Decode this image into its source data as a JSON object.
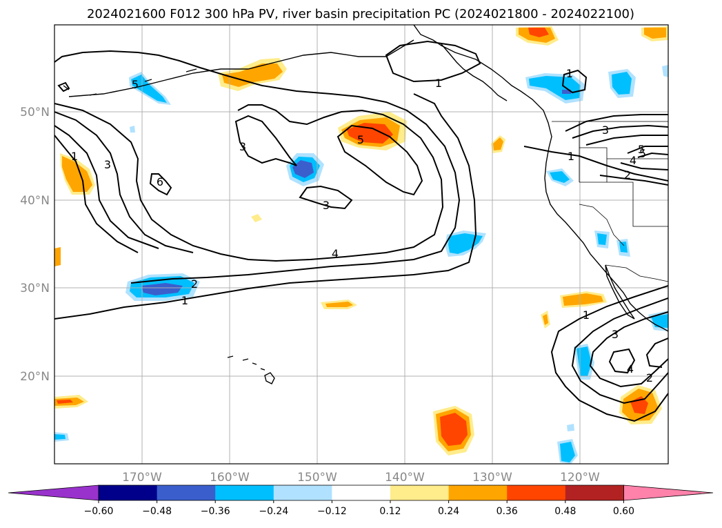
{
  "title": "2024021600 F012 300 hPa PV, river basin precipitation PC (2024021800 - 2024022100)",
  "lat_labels": [
    "50°N",
    "40°N",
    "30°N",
    "20°N"
  ],
  "lon_labels": [
    "170°W",
    "160°W",
    "150°W",
    "140°W",
    "130°W",
    "120°W"
  ],
  "colorbar": {
    "colors": [
      "#9932cc",
      "#00008b",
      "#3a5fcd",
      "#00bfff",
      "#b0e2ff",
      "#ffffff",
      "#ffec8b",
      "#ffa500",
      "#ff4500",
      "#b22222",
      "#ff82ab"
    ],
    "ticks": [
      "−0.60",
      "−0.48",
      "−0.36",
      "−0.24",
      "−0.12",
      "0.12",
      "0.24",
      "0.36",
      "0.48",
      "0.60"
    ]
  },
  "contour_labels": [
    "1",
    "2",
    "3",
    "4",
    "5",
    "6",
    "1",
    "3",
    "3",
    "5",
    "1",
    "1",
    "2",
    "3",
    "4",
    "5",
    "1",
    "3",
    "4",
    "2",
    "1",
    "5"
  ],
  "colors": {
    "contour": "#000000",
    "grid": "#b0b0b0",
    "axis_label": "#888888"
  }
}
